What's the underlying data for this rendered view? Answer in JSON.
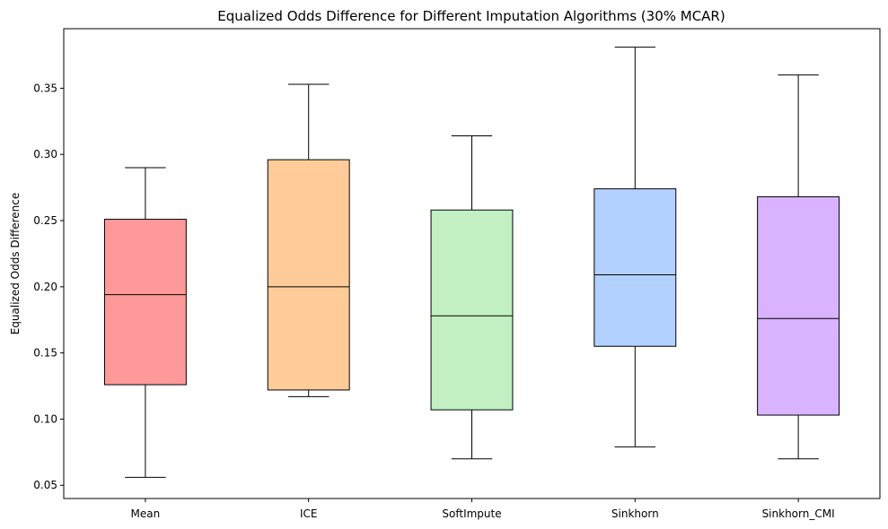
{
  "chart_data": {
    "type": "box",
    "title": "Equalized Odds Difference for Different Imputation Algorithms (30% MCAR)",
    "xlabel": "",
    "ylabel": "Equalized Odds Difference",
    "ylim": [
      0.04,
      0.395
    ],
    "yticks": [
      0.05,
      0.1,
      0.15,
      0.2,
      0.25,
      0.3,
      0.35
    ],
    "ytick_labels": [
      "0.05",
      "0.10",
      "0.15",
      "0.20",
      "0.25",
      "0.30",
      "0.35"
    ],
    "grid": false,
    "legend": "none",
    "categories": [
      "Mean",
      "ICE",
      "SoftImpute",
      "Sinkhorn",
      "Sinkhorn_CMI"
    ],
    "boxes": [
      {
        "whisker_low": 0.056,
        "q1": 0.126,
        "median": 0.194,
        "q3": 0.251,
        "whisker_high": 0.29,
        "color": "#ff9999"
      },
      {
        "whisker_low": 0.117,
        "q1": 0.122,
        "median": 0.2,
        "q3": 0.296,
        "whisker_high": 0.353,
        "color": "#ffcc99"
      },
      {
        "whisker_low": 0.07,
        "q1": 0.107,
        "median": 0.178,
        "q3": 0.258,
        "whisker_high": 0.314,
        "color": "#c2f0c2"
      },
      {
        "whisker_low": 0.079,
        "q1": 0.155,
        "median": 0.209,
        "q3": 0.274,
        "whisker_high": 0.381,
        "color": "#b3d1ff"
      },
      {
        "whisker_low": 0.07,
        "q1": 0.103,
        "median": 0.176,
        "q3": 0.268,
        "whisker_high": 0.36,
        "color": "#d9b3ff"
      }
    ]
  }
}
